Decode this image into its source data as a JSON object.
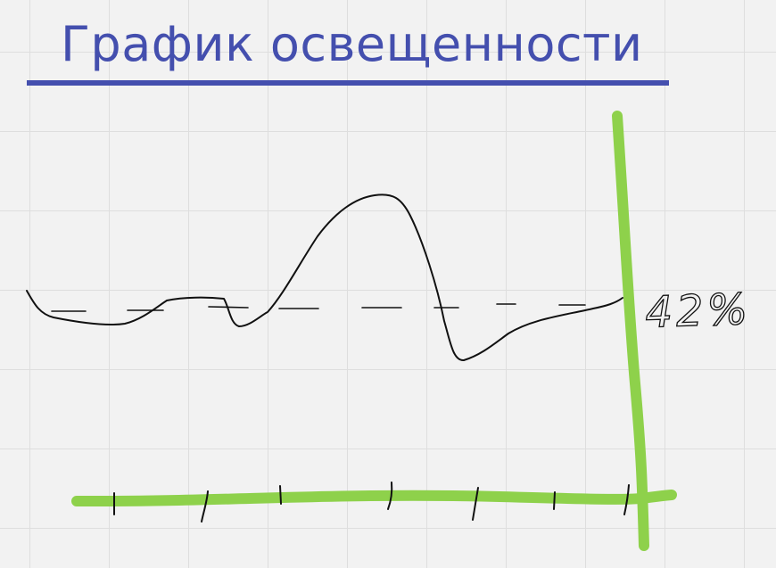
{
  "whiteboard": {
    "title": "График освещенности",
    "percent_label": "42%",
    "colors": {
      "title": "#444fae",
      "title_underline": "#444fae",
      "axes": "#8ed14b",
      "ink": "#111111",
      "background": "#f2f2f2",
      "grid": "#dedede"
    }
  }
}
